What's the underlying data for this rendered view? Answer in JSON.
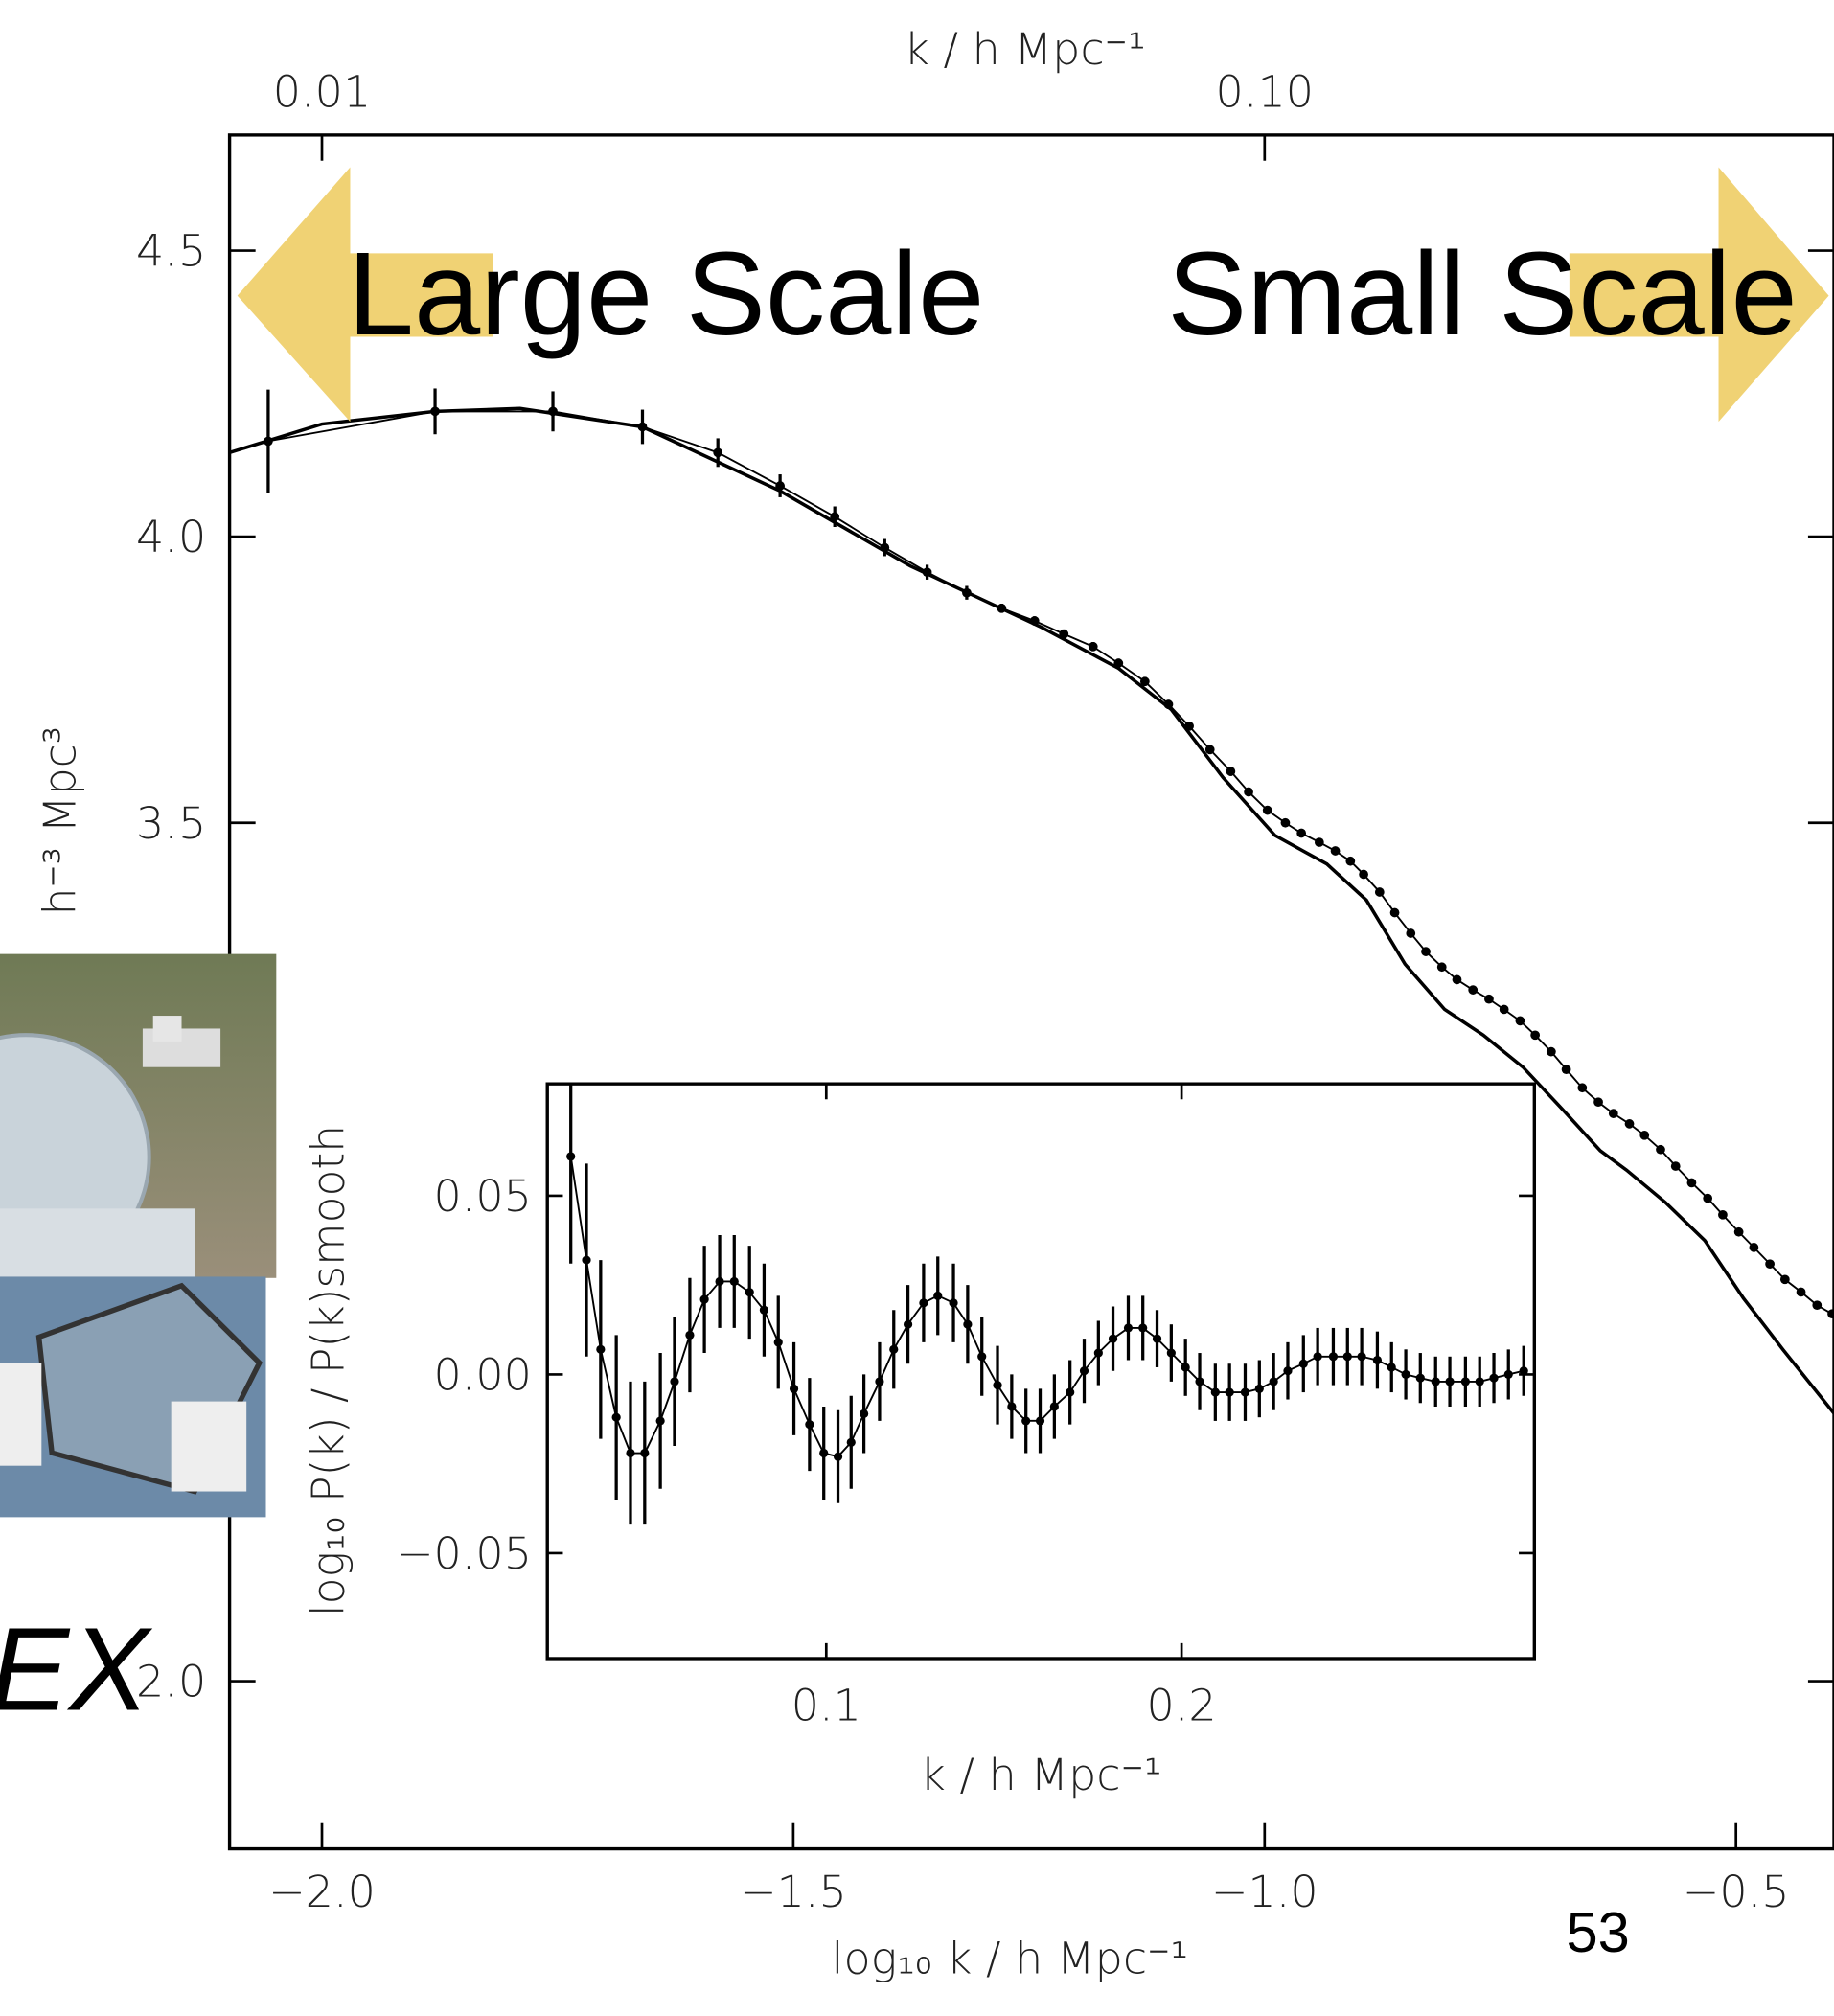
{
  "slide": {
    "large_scale": "Large Scale",
    "small_scale": "Small Scale",
    "page_number": "53",
    "logo_fragment": "EX"
  },
  "chart_data": [
    {
      "type": "line",
      "x_label": "log₁₀ k / h Mpc⁻¹",
      "x2_label": "k / h Mpc⁻¹",
      "y_label": "h⁻³ Mpc³",
      "xlim": [
        -2.098,
        -0.396
      ],
      "ylim": [
        1.707,
        4.702
      ],
      "xticks": [
        {
          "value": -2.0,
          "label": "−2.0"
        },
        {
          "value": -1.5,
          "label": "−1.5"
        },
        {
          "value": -1.0,
          "label": "−1.0"
        },
        {
          "value": -0.5,
          "label": "−0.5"
        }
      ],
      "x2ticks": [
        0.01,
        {
          "value": 0.1,
          "label": "0.10"
        }
      ],
      "x2scale": "log",
      "yticks": [
        4.5,
        {
          "value": 4.0,
          "label": "4.0"
        },
        3.5,
        {
          "value": 2.0,
          "label": "2.0"
        }
      ],
      "series": [
        {
          "color": "#000000",
          "markers": true,
          "x": [
            -2.057,
            -1.88,
            -1.755,
            -1.66,
            -1.58,
            -1.514,
            -1.456,
            -1.403,
            -1.358,
            -1.316,
            -1.279,
            -1.244,
            -1.213,
            -1.182,
            -1.155,
            -1.127,
            -1.102,
            -1.08,
            -1.058,
            -1.036,
            -1.017,
            -0.997,
            -0.978,
            -0.961,
            -0.942,
            -0.925,
            -0.909,
            -0.895,
            -0.878,
            -0.862,
            -0.845,
            -0.829,
            -0.812,
            -0.796,
            -0.779,
            -0.762,
            -0.746,
            -0.729,
            -0.713,
            -0.696,
            -0.68,
            -0.663,
            -0.646,
            -0.63,
            -0.613,
            -0.597,
            -0.58,
            -0.564,
            -0.547,
            -0.53,
            -0.514,
            -0.497,
            -0.481,
            -0.464,
            -0.448,
            -0.431,
            -0.414,
            -0.398
          ],
          "values": [
            4.167,
            4.219,
            4.219,
            4.192,
            4.147,
            4.089,
            4.035,
            3.981,
            3.938,
            3.902,
            3.875,
            3.853,
            3.83,
            3.808,
            3.779,
            3.747,
            3.707,
            3.669,
            3.628,
            3.59,
            3.554,
            3.522,
            3.5,
            3.482,
            3.466,
            3.451,
            3.433,
            3.41,
            3.379,
            3.343,
            3.307,
            3.275,
            3.248,
            3.226,
            3.208,
            3.192,
            3.174,
            3.154,
            3.129,
            3.1,
            3.069,
            3.037,
            3.012,
            2.992,
            2.974,
            2.954,
            2.929,
            2.9,
            2.871,
            2.844,
            2.815,
            2.785,
            2.758,
            2.729,
            2.702,
            2.68,
            2.657,
            2.642
          ],
          "errors": [
            0.09,
            0.04,
            0.035,
            0.03,
            0.025,
            0.02,
            0.018,
            0.015,
            0.013,
            0.012,
            0.008,
            0.008,
            0.008,
            0.008,
            0.008,
            0.008,
            0.008,
            0.008,
            0.008,
            0.008,
            0.005,
            0.005,
            0.005,
            0.005,
            0.005,
            0.005,
            0.005,
            0.005,
            0.005,
            0.005,
            0.005,
            0.005,
            0.005,
            0.005,
            0.005,
            0.005,
            0.005,
            0.005,
            0.005,
            0.005,
            0.005,
            0.005,
            0.005,
            0.005,
            0.005,
            0.005,
            0.005,
            0.005,
            0.005,
            0.005,
            0.005,
            0.005,
            0.005,
            0.005,
            0.005,
            0.005,
            0.005,
            0.005
          ]
        },
        {
          "color": "#000000",
          "markers": false,
          "x": [
            -2.098,
            -2.0,
            -1.88,
            -1.79,
            -1.66,
            -1.514,
            -1.376,
            -1.237,
            -1.155,
            -1.099,
            -1.044,
            -0.989,
            -0.934,
            -0.892,
            -0.851,
            -0.809,
            -0.768,
            -0.726,
            -0.685,
            -0.644,
            -0.616,
            -0.575,
            -0.533,
            -0.492,
            -0.45,
            -0.395
          ],
          "values": [
            4.147,
            4.197,
            4.219,
            4.224,
            4.192,
            4.08,
            3.949,
            3.842,
            3.77,
            3.698,
            3.579,
            3.478,
            3.428,
            3.365,
            3.253,
            3.174,
            3.129,
            3.073,
            3.001,
            2.927,
            2.893,
            2.837,
            2.77,
            2.669,
            2.579,
            2.466
          ]
        }
      ]
    },
    {
      "type": "line",
      "x_label": "k / h Mpc⁻¹",
      "y_label": "log₁₀ P(k) / P(k)smooth",
      "xlim": [
        0.0215,
        0.2993
      ],
      "ylim": [
        -0.0795,
        0.0813
      ],
      "xticks": [
        0.1,
        0.2
      ],
      "yticks": [
        0.05,
        {
          "value": 0,
          "label": "0.00"
        },
        {
          "value": -0.05,
          "label": "−0.05"
        }
      ],
      "series": [
        {
          "color": "#000000",
          "markers": true,
          "x": [
            0.0281,
            0.0325,
            0.0365,
            0.0409,
            0.0449,
            0.0489,
            0.0533,
            0.0573,
            0.0616,
            0.0657,
            0.07,
            0.0741,
            0.0784,
            0.0825,
            0.0865,
            0.0909,
            0.0953,
            0.0993,
            0.1033,
            0.107,
            0.1106,
            0.115,
            0.119,
            0.123,
            0.1274,
            0.1314,
            0.1358,
            0.1398,
            0.1438,
            0.1482,
            0.1522,
            0.1562,
            0.1602,
            0.1642,
            0.1686,
            0.1726,
            0.1766,
            0.1807,
            0.185,
            0.1891,
            0.1931,
            0.1971,
            0.2011,
            0.2051,
            0.2095,
            0.2135,
            0.2179,
            0.2219,
            0.2259,
            0.2299,
            0.2343,
            0.2383,
            0.2427,
            0.2467,
            0.2507,
            0.2551,
            0.2591,
            0.2631,
            0.2672,
            0.2715,
            0.2755,
            0.2799,
            0.2839,
            0.2879,
            0.292,
            0.2963
          ],
          "values": [
            0.061,
            0.032,
            0.007,
            -0.012,
            -0.022,
            -0.022,
            -0.013,
            -0.002,
            0.011,
            0.021,
            0.026,
            0.026,
            0.023,
            0.018,
            0.009,
            -0.004,
            -0.014,
            -0.022,
            -0.023,
            -0.019,
            -0.011,
            -0.002,
            0.007,
            0.014,
            0.02,
            0.022,
            0.02,
            0.014,
            0.005,
            -0.003,
            -0.009,
            -0.013,
            -0.013,
            -0.009,
            -0.005,
            0.001,
            0.006,
            0.01,
            0.013,
            0.013,
            0.01,
            0.006,
            0.002,
            -0.002,
            -0.005,
            -0.005,
            -0.005,
            -0.004,
            -0.002,
            0.001,
            0.003,
            0.005,
            0.005,
            0.005,
            0.005,
            0.004,
            0.002,
            0.0,
            -0.001,
            -0.002,
            -0.002,
            -0.002,
            -0.002,
            -0.001,
            0.0,
            0.001
          ],
          "errors": [
            0.03,
            0.027,
            0.025,
            0.023,
            0.02,
            0.02,
            0.019,
            0.018,
            0.016,
            0.015,
            0.013,
            0.013,
            0.013,
            0.013,
            0.013,
            0.013,
            0.013,
            0.013,
            0.013,
            0.013,
            0.011,
            0.011,
            0.011,
            0.011,
            0.011,
            0.011,
            0.011,
            0.011,
            0.011,
            0.011,
            0.009,
            0.009,
            0.009,
            0.009,
            0.009,
            0.009,
            0.009,
            0.009,
            0.009,
            0.009,
            0.008,
            0.008,
            0.008,
            0.008,
            0.008,
            0.008,
            0.008,
            0.008,
            0.008,
            0.008,
            0.008,
            0.008,
            0.008,
            0.008,
            0.008,
            0.008,
            0.007,
            0.007,
            0.007,
            0.007,
            0.007,
            0.007,
            0.007,
            0.007,
            0.007,
            0.007
          ]
        }
      ]
    }
  ]
}
